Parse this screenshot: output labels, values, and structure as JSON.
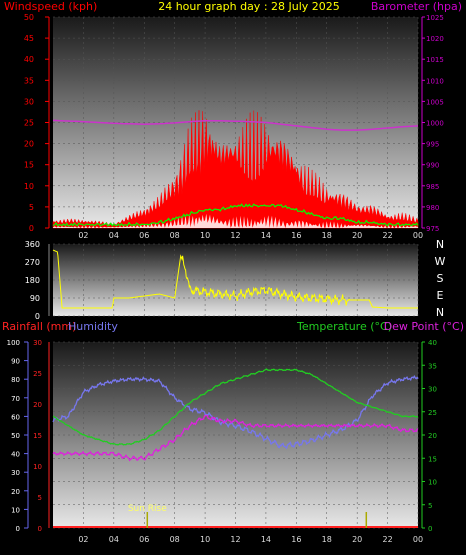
{
  "header": {
    "left_label": "Windspeed (kph)",
    "center_label": "24 hour graph day : 28 July 2025",
    "right_label": "Barometer (hpa)"
  },
  "x_ticks": [
    "02",
    "04",
    "06",
    "08",
    "10",
    "12",
    "14",
    "16",
    "18",
    "20",
    "22",
    "00"
  ],
  "colors": {
    "wind_axis": "#ff0000",
    "baro_axis": "#cc00cc",
    "wind_fill": "#ff0000",
    "gust_fill": "#ffffff",
    "avg_line": "#00ff00",
    "barometer_line": "#cc33cc",
    "direction_line": "#ffff00",
    "rain_axis": "#ff2222",
    "humidity_line": "#7777ee",
    "temperature_line": "#22cc22",
    "dewpoint_line": "#dd22dd",
    "sun_marker": "#aaaa00"
  },
  "chart_data": [
    {
      "type": "area",
      "name": "wind",
      "y_ticks": [
        "0",
        "5",
        "10",
        "15",
        "20",
        "25",
        "30",
        "35",
        "40",
        "45",
        "50"
      ],
      "ylim": [
        0,
        50
      ],
      "baro_ticks": [
        "975",
        "980",
        "985",
        "990",
        "995",
        "1000",
        "1005",
        "1010",
        "1015",
        "1020",
        "1025"
      ],
      "baro_lim": [
        975,
        1025
      ],
      "x_hours": [
        0,
        2,
        4,
        6,
        7,
        8,
        9,
        10,
        11,
        12,
        13,
        14,
        15,
        16,
        17,
        18,
        19,
        20,
        21,
        22,
        23,
        24
      ],
      "windspeed": [
        2,
        2,
        1,
        3,
        4,
        7,
        12,
        14,
        10,
        11,
        12,
        16,
        13,
        11,
        8,
        7,
        5,
        4,
        3,
        2,
        2,
        2
      ],
      "gust_peaks": [
        2,
        2,
        1,
        4,
        6,
        10,
        18,
        22,
        16,
        18,
        20,
        21,
        19,
        16,
        12,
        10,
        8,
        6,
        5,
        3,
        3,
        2
      ],
      "average": [
        0.5,
        0.5,
        0.5,
        0.5,
        1,
        2,
        3,
        4,
        4,
        5,
        5,
        5,
        5,
        4,
        3,
        2,
        2,
        1,
        1,
        0.5,
        0.5,
        0.5
      ],
      "barometer": [
        1000.5,
        1000.2,
        999.8,
        999.6,
        999.7,
        999.9,
        1000.2,
        1000.4,
        1000.4,
        1000.3,
        1000.2,
        1000.0,
        999.6,
        999.2,
        998.8,
        998.4,
        998.2,
        998.2,
        998.4,
        998.7,
        999.0,
        999.2
      ]
    },
    {
      "type": "line",
      "name": "wind-direction",
      "y_ticks": [
        "360",
        "270",
        "180",
        "90",
        "0"
      ],
      "ylim": [
        0,
        360
      ],
      "compass_labels": [
        "N",
        "W",
        "S",
        "E",
        "N"
      ],
      "x_hours": [
        0,
        0.3,
        0.6,
        1,
        2,
        3,
        3.9,
        4,
        4.5,
        5,
        6,
        7,
        7.5,
        8,
        8.4,
        8.7,
        9,
        10,
        11,
        12,
        13,
        14,
        15,
        16,
        17,
        18,
        19,
        20,
        20.8,
        21,
        22,
        23,
        24
      ],
      "direction": [
        330,
        320,
        40,
        40,
        40,
        40,
        40,
        90,
        90,
        90,
        100,
        110,
        100,
        90,
        300,
        240,
        130,
        120,
        110,
        100,
        120,
        130,
        110,
        95,
        90,
        85,
        80,
        80,
        80,
        45,
        40,
        40,
        40
      ]
    },
    {
      "type": "line",
      "name": "temperature-humidity-rain",
      "legend": [
        "Rainfall (mm)",
        "Humidity",
        "Temperature (°C)",
        "Dew Point (°C)"
      ],
      "humidity_ticks": [
        "0",
        "10",
        "20",
        "30",
        "40",
        "50",
        "60",
        "70",
        "80",
        "90",
        "100"
      ],
      "humidity_lim": [
        0,
        100
      ],
      "rain_ticks": [
        "0",
        "5",
        "10",
        "15",
        "20",
        "25",
        "30"
      ],
      "rain_lim": [
        0,
        30
      ],
      "temp_ticks": [
        "0",
        "5",
        "10",
        "15",
        "20",
        "25",
        "30",
        "35",
        "40"
      ],
      "temp_lim": [
        0,
        40
      ],
      "x_hours": [
        0,
        1,
        2,
        3,
        4,
        5,
        6,
        7,
        8,
        9,
        10,
        11,
        12,
        13,
        14,
        15,
        16,
        17,
        18,
        19,
        20,
        21,
        22,
        23,
        24
      ],
      "humidity": [
        58,
        60,
        73,
        77,
        79,
        80,
        80,
        79,
        70,
        64,
        62,
        57,
        55,
        52,
        48,
        44,
        45,
        47,
        50,
        53,
        58,
        71,
        78,
        80,
        81
      ],
      "temperature": [
        24,
        22,
        20,
        19,
        18,
        18,
        19,
        21,
        24,
        27,
        29,
        31,
        32,
        33,
        34,
        34,
        34,
        33,
        31,
        29,
        27,
        26,
        25,
        24,
        24
      ],
      "dew_point": [
        16,
        16,
        16,
        16,
        16,
        15,
        15,
        17,
        19,
        22,
        24,
        23,
        23,
        22,
        22,
        22,
        22,
        22,
        22,
        22,
        22,
        22,
        22,
        21,
        21
      ],
      "rainfall": [
        0,
        0,
        0,
        0,
        0,
        0,
        0,
        0,
        0,
        0,
        0,
        0,
        0,
        0,
        0,
        0,
        0,
        0,
        0,
        0,
        0,
        0,
        0,
        0,
        0
      ],
      "annotation": "Sun Rise",
      "sunrise_hour": 6.2,
      "sunset_hour": 20.6
    }
  ]
}
